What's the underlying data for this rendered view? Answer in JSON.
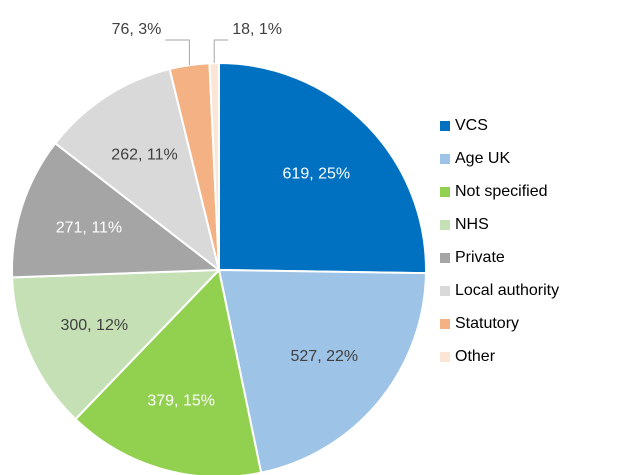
{
  "chart_data": {
    "type": "pie",
    "categories": [
      "VCS",
      "Age UK",
      "Not specified",
      "NHS",
      "Private",
      "Local authority",
      "Statutory",
      "Other"
    ],
    "values": [
      619,
      527,
      379,
      300,
      271,
      262,
      76,
      18
    ],
    "value_labels": [
      "619, 25%",
      "527, 22%",
      "379, 15%",
      "300, 12%",
      "271, 11%",
      "262, 11%",
      "76, 3%",
      "18, 1%"
    ],
    "colors": [
      "#0070c0",
      "#9dc3e6",
      "#92d050",
      "#c5e0b4",
      "#a5a5a5",
      "#d9d9d9",
      "#f4b183",
      "#fbe5d6"
    ],
    "legend": "right"
  }
}
